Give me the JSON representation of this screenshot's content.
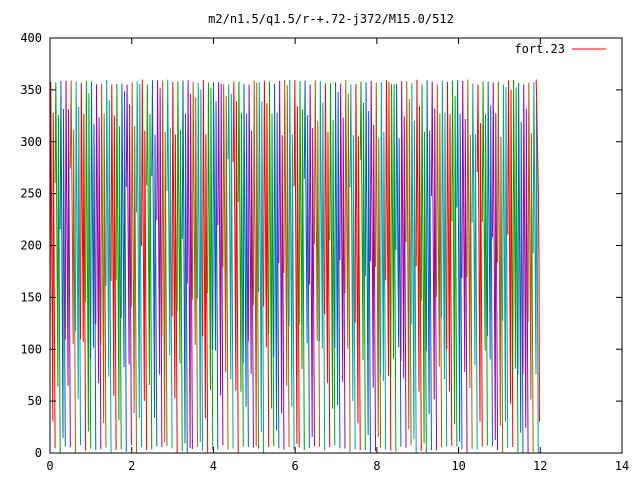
{
  "chart_data": {
    "type": "line",
    "title": "m2/n1.5/q1.5/r-+.72-j372/M15.0/512",
    "xlabel": "",
    "ylabel": "",
    "xlim": [
      0,
      14
    ],
    "ylim": [
      0,
      400
    ],
    "x_ticks": [
      "0",
      "2",
      "4",
      "6",
      "8",
      "10",
      "12",
      "14"
    ],
    "y_ticks": [
      "0",
      "50",
      "100",
      "150",
      "200",
      "250",
      "300",
      "350",
      "400"
    ],
    "grid": false,
    "legend_position": "top-right",
    "series": [
      {
        "name": "fort.23",
        "legend_color": "#ff0000",
        "colors": [
          "#ff0000",
          "#00a000",
          "#0060c0",
          "#a000a0",
          "#a06000",
          "#00a0a0"
        ],
        "x_start": 0,
        "x_end": 11.95,
        "y_min": 0,
        "y_max": 360,
        "cycles": 96,
        "description_values": "sawtooth-like oscillations between 0 and 360 across x 0 to 12"
      }
    ]
  }
}
